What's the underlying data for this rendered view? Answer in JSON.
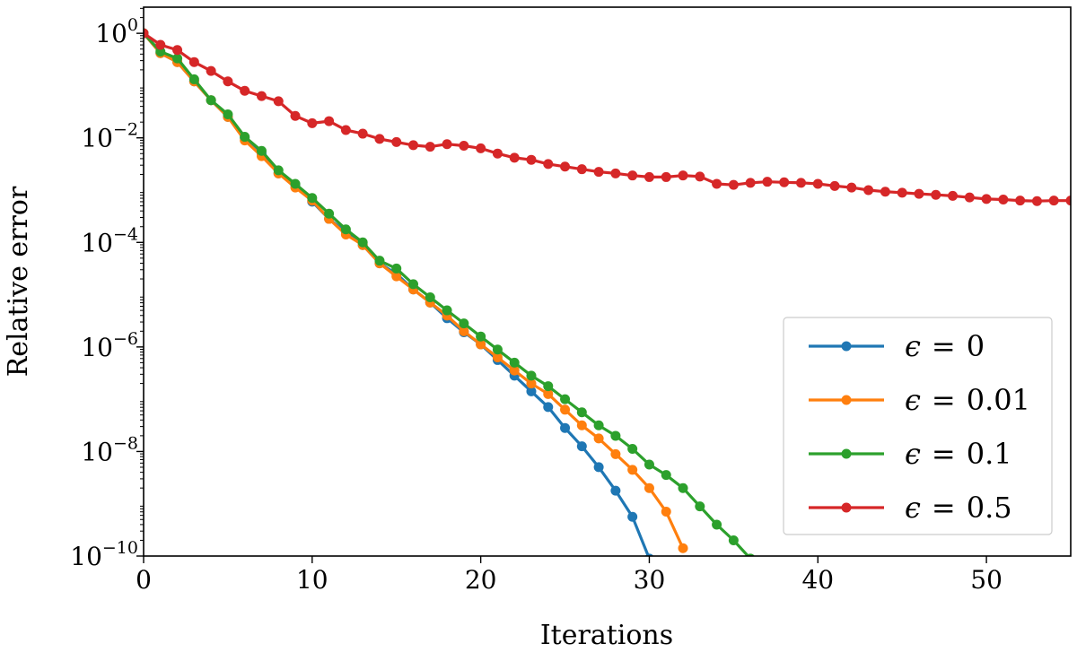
{
  "chart_data": {
    "type": "line",
    "title": "",
    "xlabel": "Iterations",
    "ylabel": "Relative error",
    "yscale": "log",
    "xlim": [
      0,
      55
    ],
    "ylim_exponent": [
      -10,
      0.5
    ],
    "xticks": [
      0,
      10,
      20,
      30,
      40,
      50
    ],
    "xtick_labels": [
      "0",
      "10",
      "20",
      "30",
      "40",
      "50"
    ],
    "yticks": [
      {
        "exponent": 0,
        "base": "10",
        "exp_label": "0"
      },
      {
        "exponent": -2,
        "base": "10",
        "exp_label": "−2"
      },
      {
        "exponent": -4,
        "base": "10",
        "exp_label": "−4"
      },
      {
        "exponent": -6,
        "base": "10",
        "exp_label": "−6"
      },
      {
        "exponent": -8,
        "base": "10",
        "exp_label": "−8"
      },
      {
        "exponent": -10,
        "base": "10",
        "exp_label": "−10"
      }
    ],
    "legend_location": "lower-right",
    "series": [
      {
        "name": "ϵ = 0",
        "symbol": "ϵ",
        "equals": "=",
        "value": "0",
        "color": "#1f77b4",
        "x": [
          0,
          1,
          2,
          3,
          4,
          5,
          6,
          7,
          8,
          9,
          10,
          11,
          12,
          13,
          14,
          15,
          16,
          17,
          18,
          19,
          20,
          21,
          22,
          23,
          24,
          25,
          26,
          27,
          28,
          29,
          30
        ],
        "log10_y": [
          0,
          -0.38,
          -0.55,
          -0.92,
          -1.28,
          -1.6,
          -2.0,
          -2.3,
          -2.68,
          -2.9,
          -3.22,
          -3.55,
          -3.8,
          -4.05,
          -4.4,
          -4.6,
          -4.9,
          -5.15,
          -5.45,
          -5.72,
          -5.95,
          -6.25,
          -6.55,
          -6.85,
          -7.15,
          -7.55,
          -7.9,
          -8.3,
          -8.75,
          -9.25,
          -10.05
        ]
      },
      {
        "name": "ϵ = 0.01",
        "symbol": "ϵ",
        "equals": "=",
        "value": "0.01",
        "color": "#ff7f0e",
        "x": [
          0,
          1,
          2,
          3,
          4,
          5,
          6,
          7,
          8,
          9,
          10,
          11,
          12,
          13,
          14,
          15,
          16,
          17,
          18,
          19,
          20,
          21,
          22,
          23,
          24,
          25,
          26,
          27,
          28,
          29,
          30,
          31,
          32
        ],
        "log10_y": [
          0,
          -0.38,
          -0.55,
          -0.92,
          -1.28,
          -1.6,
          -2.05,
          -2.35,
          -2.68,
          -2.95,
          -3.2,
          -3.55,
          -3.85,
          -4.05,
          -4.4,
          -4.65,
          -4.9,
          -5.15,
          -5.4,
          -5.7,
          -5.95,
          -6.2,
          -6.45,
          -6.7,
          -6.9,
          -7.2,
          -7.5,
          -7.75,
          -8.05,
          -8.35,
          -8.7,
          -9.15,
          -9.85
        ]
      },
      {
        "name": "ϵ = 0.1",
        "symbol": "ϵ",
        "equals": "=",
        "value": "0.1",
        "color": "#2ca02c",
        "x": [
          0,
          1,
          2,
          3,
          4,
          5,
          6,
          7,
          8,
          9,
          10,
          11,
          12,
          13,
          14,
          15,
          16,
          17,
          18,
          19,
          20,
          21,
          22,
          23,
          24,
          25,
          26,
          27,
          28,
          29,
          30,
          31,
          32,
          33,
          34,
          35,
          36
        ],
        "log10_y": [
          0,
          -0.35,
          -0.48,
          -0.88,
          -1.28,
          -1.55,
          -1.98,
          -2.25,
          -2.62,
          -2.88,
          -3.15,
          -3.45,
          -3.75,
          -4.0,
          -4.35,
          -4.5,
          -4.8,
          -5.05,
          -5.3,
          -5.55,
          -5.8,
          -6.05,
          -6.3,
          -6.55,
          -6.75,
          -7.0,
          -7.25,
          -7.5,
          -7.7,
          -7.95,
          -8.25,
          -8.45,
          -8.7,
          -9.05,
          -9.4,
          -9.7,
          -10.05
        ]
      },
      {
        "name": "ϵ = 0.5",
        "symbol": "ϵ",
        "equals": "=",
        "value": "0.5",
        "color": "#d62728",
        "x": [
          0,
          1,
          2,
          3,
          4,
          5,
          6,
          7,
          8,
          9,
          10,
          11,
          12,
          13,
          14,
          15,
          16,
          17,
          18,
          19,
          20,
          21,
          22,
          23,
          24,
          25,
          26,
          27,
          28,
          29,
          30,
          31,
          32,
          33,
          34,
          35,
          36,
          37,
          38,
          39,
          40,
          41,
          42,
          43,
          44,
          45,
          46,
          47,
          48,
          49,
          50,
          51,
          52,
          53,
          54,
          55
        ],
        "log10_y": [
          0,
          -0.22,
          -0.32,
          -0.55,
          -0.72,
          -0.92,
          -1.1,
          -1.2,
          -1.3,
          -1.58,
          -1.72,
          -1.68,
          -1.85,
          -1.92,
          -2.02,
          -2.08,
          -2.14,
          -2.17,
          -2.12,
          -2.15,
          -2.2,
          -2.3,
          -2.38,
          -2.42,
          -2.5,
          -2.55,
          -2.6,
          -2.65,
          -2.68,
          -2.72,
          -2.75,
          -2.75,
          -2.72,
          -2.74,
          -2.88,
          -2.9,
          -2.86,
          -2.84,
          -2.85,
          -2.86,
          -2.88,
          -2.92,
          -2.95,
          -3.0,
          -3.03,
          -3.05,
          -3.07,
          -3.09,
          -3.11,
          -3.14,
          -3.17,
          -3.18,
          -3.2,
          -3.21,
          -3.2,
          -3.2
        ]
      }
    ]
  }
}
